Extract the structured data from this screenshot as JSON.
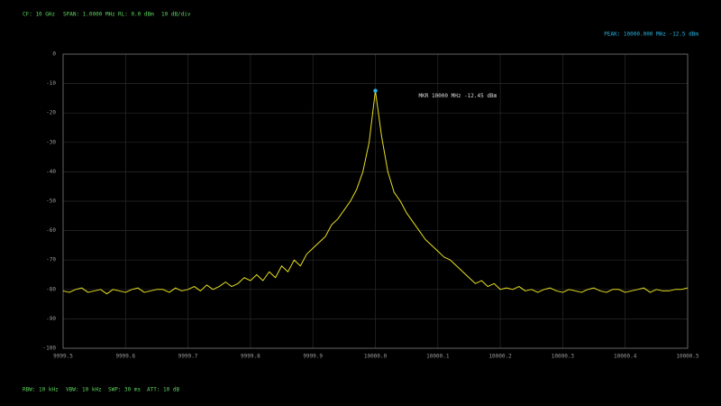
{
  "chart_data": {
    "type": "line",
    "status_top": [
      "CF: 10 GHz",
      "SPAN: 1.0000 MHz",
      "RL: 0.0 dBm",
      "10 dB/div"
    ],
    "status_bottom": [
      "RBW: 10 kHz",
      "VBW: 10 kHz",
      "SWP: 30 ms",
      "ATT: 10 dB"
    ],
    "peak_readout": "PEAK: 10000.000 MHz   -12.5 dBm",
    "xlim": [
      9999.5,
      10000.5
    ],
    "xticks": [
      9999.5,
      9999.6,
      9999.7,
      9999.8,
      9999.9,
      {
        "value": 10000,
        "label": "10000.0"
      },
      10000.1,
      10000.2,
      10000.3,
      10000.4,
      10000.5
    ],
    "ylim": [
      -100,
      0
    ],
    "yticks": [
      0,
      -10,
      -20,
      -30,
      -40,
      -50,
      -60,
      -70,
      -80,
      -90,
      -100
    ],
    "grid": true,
    "x": [
      9999.5,
      9999.51,
      9999.52,
      9999.53,
      9999.54,
      9999.55,
      9999.56,
      9999.57,
      9999.58,
      9999.59,
      9999.6,
      9999.61,
      9999.62,
      9999.63,
      9999.64,
      9999.65,
      9999.66,
      9999.67,
      9999.68,
      9999.69,
      9999.7,
      9999.71,
      9999.72,
      9999.73,
      9999.74,
      9999.75,
      9999.76,
      9999.77,
      9999.78,
      9999.79,
      9999.8,
      9999.81,
      9999.82,
      9999.83,
      9999.84,
      9999.85,
      9999.86,
      9999.87,
      9999.88,
      9999.89,
      9999.9,
      9999.91,
      9999.92,
      9999.93,
      9999.94,
      9999.95,
      9999.96,
      9999.97,
      9999.98,
      9999.99,
      10000.0,
      10000.01,
      10000.02,
      10000.03,
      10000.04,
      10000.05,
      10000.06,
      10000.07,
      10000.08,
      10000.09,
      10000.1,
      10000.11,
      10000.12,
      10000.13,
      10000.14,
      10000.15,
      10000.16,
      10000.17,
      10000.18,
      10000.19,
      10000.2,
      10000.21,
      10000.22,
      10000.23,
      10000.24,
      10000.25,
      10000.26,
      10000.27,
      10000.28,
      10000.29,
      10000.3,
      10000.31,
      10000.32,
      10000.33,
      10000.34,
      10000.35,
      10000.36,
      10000.37,
      10000.38,
      10000.39,
      10000.4,
      10000.41,
      10000.42,
      10000.43,
      10000.44,
      10000.45,
      10000.46,
      10000.47,
      10000.48,
      10000.49,
      10000.5
    ],
    "series": [
      {
        "color": "#e8e020",
        "values": [
          -80.5,
          -81,
          -80,
          -79.5,
          -81,
          -80.5,
          -80,
          -81.5,
          -80,
          -80.5,
          -81,
          -80,
          -79.5,
          -81,
          -80.5,
          -80,
          -80,
          -81,
          -79.5,
          -80.5,
          -80,
          -79,
          -80.5,
          -78.5,
          -80,
          -79,
          -77.5,
          -79,
          -78,
          -76,
          -77,
          -75,
          -77,
          -74,
          -76,
          -72,
          -74,
          -70,
          -72,
          -68,
          -66,
          -64,
          -62,
          -58,
          -56,
          -53,
          -50,
          -46,
          -40,
          -30,
          -12.45,
          -28,
          -40,
          -47,
          -50,
          -54,
          -57,
          -60,
          -63,
          -65,
          -67,
          -69,
          -70,
          -72,
          -74,
          -76,
          -78,
          -77,
          -79,
          -78,
          -80,
          -79.5,
          -80,
          -79,
          -80.5,
          -80,
          -81,
          -80,
          -79.5,
          -80.5,
          -81,
          -80,
          -80.5,
          -81,
          -80,
          -79.5,
          -80.5,
          -81,
          -80,
          -80,
          -81,
          -80.5,
          -80,
          -79.5,
          -81,
          -80,
          -80.5,
          -80.5,
          -80,
          -80,
          -79.5
        ]
      }
    ],
    "marker": {
      "x": 10000.0,
      "y": -12.45,
      "color": "#2ab4e0",
      "label": "MKR  10000 MHz   -12.45 dBm"
    }
  }
}
